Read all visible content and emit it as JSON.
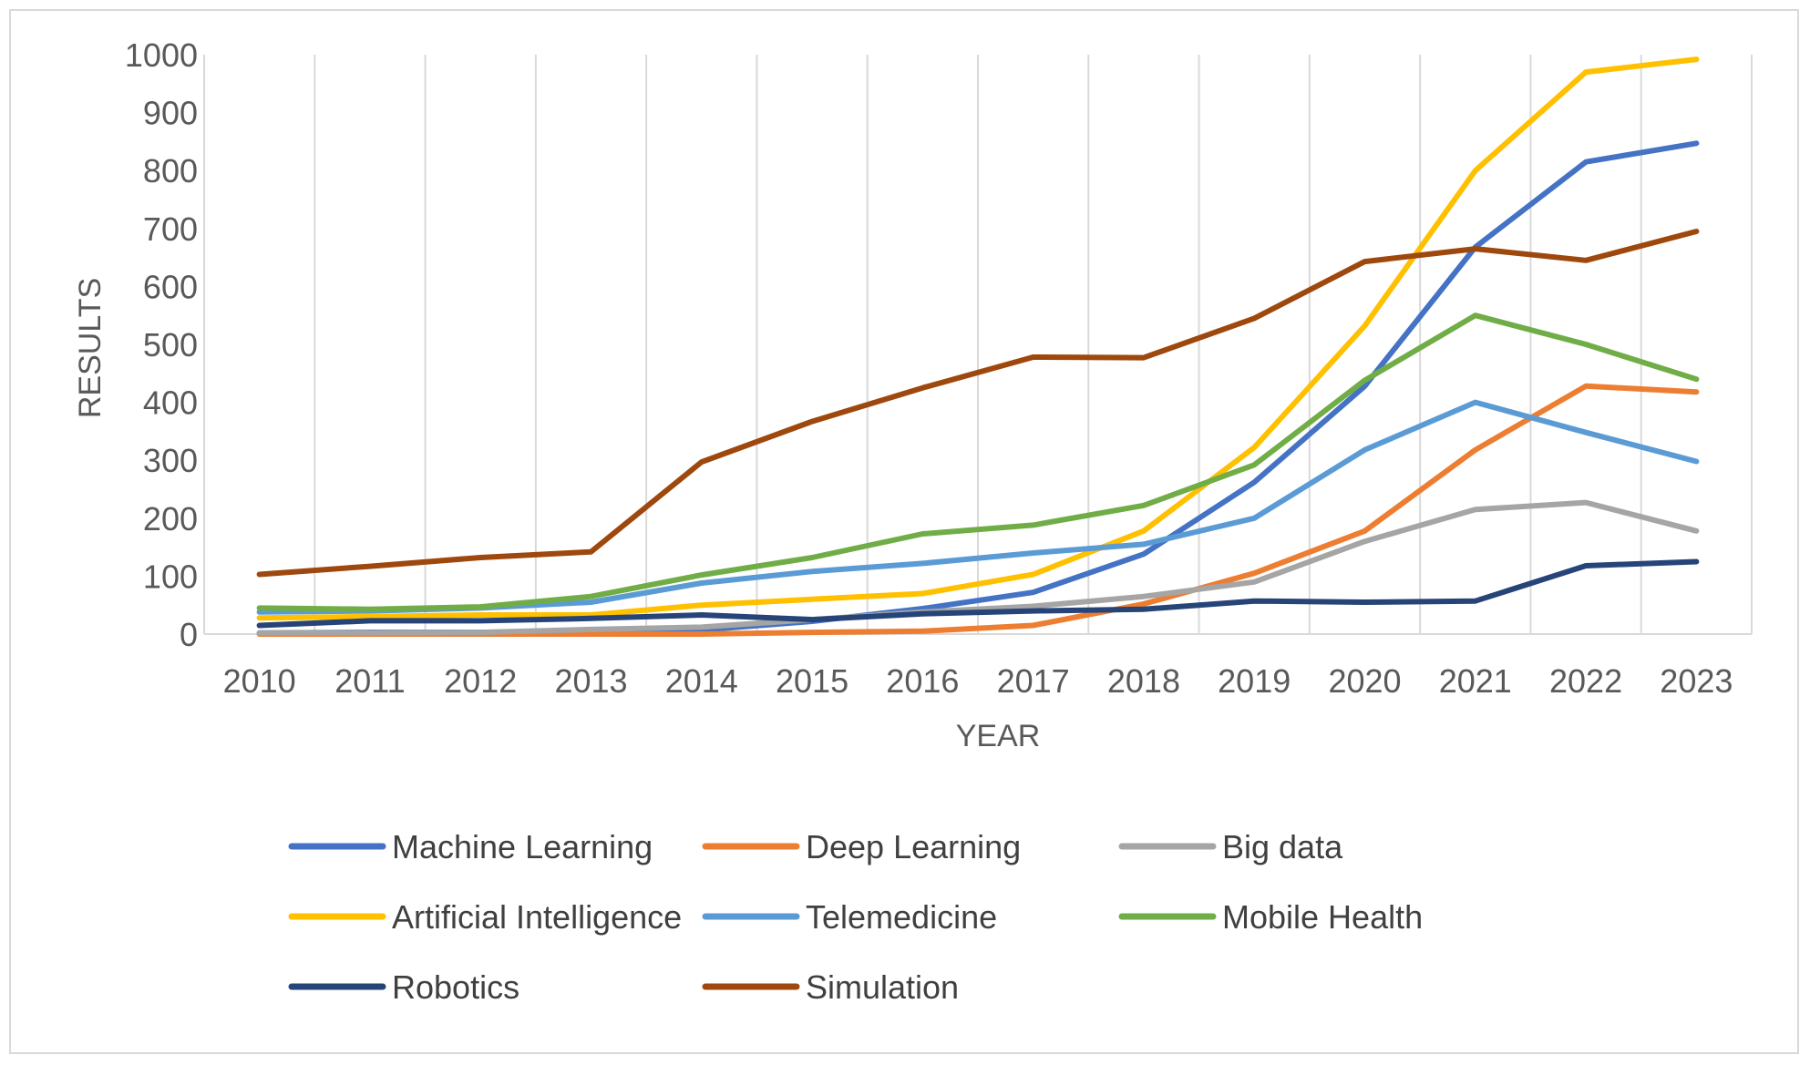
{
  "chart_data": {
    "type": "line",
    "title": "",
    "xlabel": "YEAR",
    "ylabel": "RESULTS",
    "ylim": [
      0,
      1000
    ],
    "yticks": [
      0,
      100,
      200,
      300,
      400,
      500,
      600,
      700,
      800,
      900,
      1000
    ],
    "grid": "vertical",
    "legend_position": "bottom",
    "categories": [
      "2010",
      "2011",
      "2012",
      "2013",
      "2014",
      "2015",
      "2016",
      "2017",
      "2018",
      "2019",
      "2020",
      "2021",
      "2022",
      "2023"
    ],
    "series": [
      {
        "name": "Machine Learning",
        "color": "#4472C4",
        "values": [
          2,
          3,
          3,
          5,
          7,
          22,
          44,
          72,
          138,
          262,
          428,
          668,
          815,
          847
        ]
      },
      {
        "name": "Deep Learning",
        "color": "#ED7D31",
        "values": [
          0,
          0,
          0,
          0,
          0,
          3,
          5,
          15,
          52,
          105,
          178,
          318,
          428,
          418
        ]
      },
      {
        "name": "Big data",
        "color": "#A5A5A5",
        "values": [
          2,
          2,
          3,
          8,
          12,
          25,
          38,
          48,
          65,
          90,
          160,
          215,
          227,
          178
        ]
      },
      {
        "name": "Artificial Intelligence",
        "color": "#FFC000",
        "values": [
          28,
          30,
          33,
          33,
          50,
          60,
          70,
          103,
          178,
          322,
          532,
          800,
          970,
          992
        ]
      },
      {
        "name": "Telemedicine",
        "color": "#5B9BD5",
        "values": [
          38,
          40,
          45,
          55,
          88,
          108,
          122,
          140,
          155,
          200,
          318,
          400,
          348,
          298
        ]
      },
      {
        "name": "Mobile Health",
        "color": "#70AD47",
        "values": [
          45,
          43,
          47,
          65,
          102,
          132,
          173,
          188,
          222,
          292,
          438,
          550,
          500,
          440
        ]
      },
      {
        "name": "Robotics",
        "color": "#264478",
        "values": [
          15,
          23,
          23,
          27,
          33,
          25,
          35,
          40,
          43,
          57,
          55,
          57,
          118,
          125
        ]
      },
      {
        "name": "Simulation",
        "color": "#9E480E",
        "values": [
          103,
          117,
          132,
          142,
          297,
          367,
          425,
          478,
          477,
          545,
          643,
          665,
          645,
          695
        ]
      }
    ]
  }
}
